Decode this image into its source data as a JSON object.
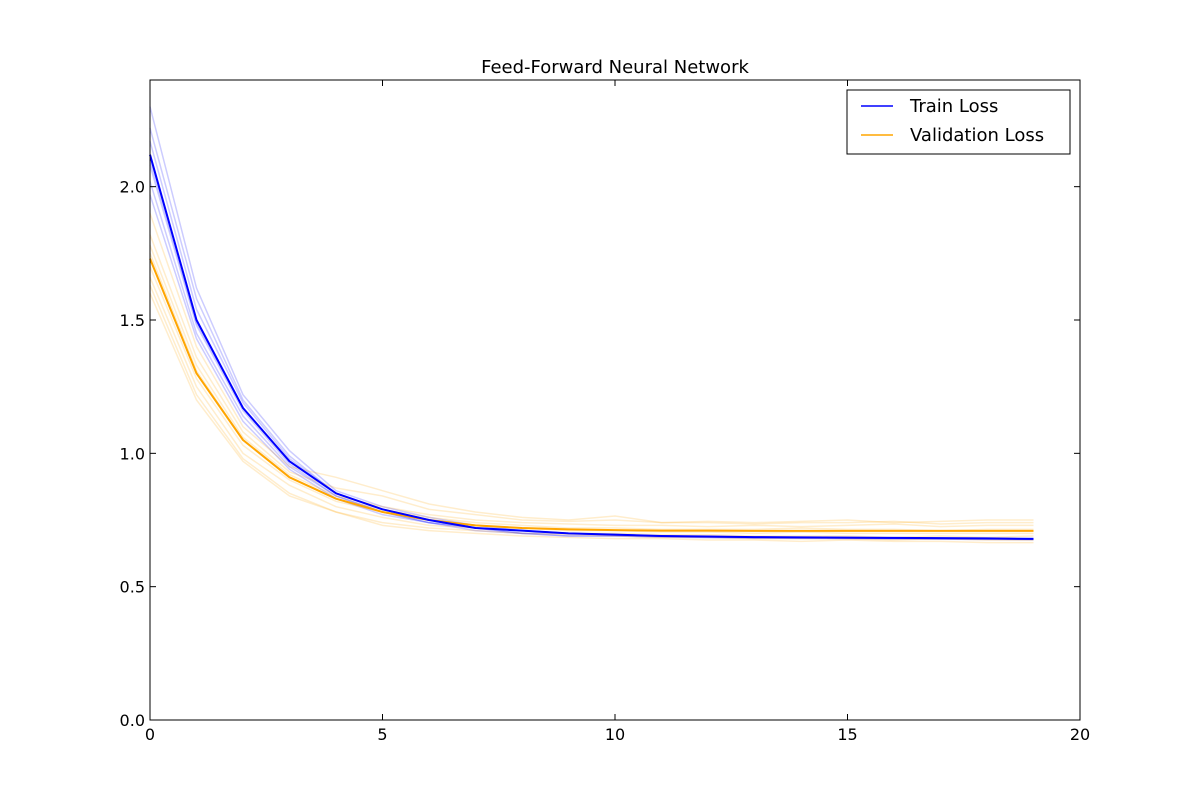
{
  "chart_data": {
    "type": "line",
    "title": "Feed-Forward Neural Network",
    "xlabel": "",
    "ylabel": "",
    "xlim": [
      0,
      20
    ],
    "ylim": [
      0,
      2.4
    ],
    "xticks": [
      "0",
      "5",
      "10",
      "15",
      "20"
    ],
    "yticks": [
      "0.0",
      "0.5",
      "1.0",
      "1.5",
      "2.0"
    ],
    "grid": false,
    "legend_position": "top-right",
    "x": [
      0,
      1,
      2,
      3,
      4,
      5,
      6,
      7,
      8,
      9,
      10,
      11,
      12,
      13,
      14,
      15,
      16,
      17,
      18,
      19
    ],
    "series": [
      {
        "name": "Train Loss",
        "color": "#0000ff",
        "values": [
          2.12,
          1.5,
          1.17,
          0.97,
          0.85,
          0.79,
          0.75,
          0.72,
          0.71,
          0.7,
          0.695,
          0.69,
          0.688,
          0.686,
          0.685,
          0.684,
          0.683,
          0.682,
          0.681,
          0.679
        ]
      },
      {
        "name": "Validation Loss",
        "color": "#ffa500",
        "values": [
          1.73,
          1.3,
          1.05,
          0.91,
          0.83,
          0.78,
          0.75,
          0.73,
          0.72,
          0.715,
          0.712,
          0.71,
          0.71,
          0.709,
          0.709,
          0.709,
          0.709,
          0.709,
          0.709,
          0.709
        ]
      }
    ],
    "faint_runs": {
      "opacity": 0.2,
      "train": [
        [
          2.3,
          1.62,
          1.22,
          1.01,
          0.86,
          0.8,
          0.76,
          0.73,
          0.71,
          0.7,
          0.695,
          0.69,
          0.688,
          0.686,
          0.685,
          0.684,
          0.683,
          0.682,
          0.681,
          0.68
        ],
        [
          2.22,
          1.58,
          1.2,
          0.99,
          0.85,
          0.79,
          0.75,
          0.72,
          0.71,
          0.7,
          0.695,
          0.69,
          0.688,
          0.686,
          0.685,
          0.684,
          0.683,
          0.682,
          0.681,
          0.68
        ],
        [
          2.17,
          1.54,
          1.19,
          0.98,
          0.85,
          0.79,
          0.75,
          0.72,
          0.71,
          0.7,
          0.694,
          0.69,
          0.687,
          0.685,
          0.684,
          0.683,
          0.682,
          0.681,
          0.68,
          0.679
        ],
        [
          2.08,
          1.48,
          1.16,
          0.96,
          0.84,
          0.78,
          0.74,
          0.72,
          0.7,
          0.7,
          0.693,
          0.689,
          0.686,
          0.684,
          0.683,
          0.682,
          0.681,
          0.68,
          0.679,
          0.678
        ],
        [
          2.02,
          1.45,
          1.14,
          0.95,
          0.84,
          0.78,
          0.74,
          0.72,
          0.7,
          0.69,
          0.69,
          0.687,
          0.685,
          0.683,
          0.682,
          0.681,
          0.68,
          0.679,
          0.678,
          0.677
        ],
        [
          1.97,
          1.43,
          1.12,
          0.94,
          0.83,
          0.77,
          0.74,
          0.71,
          0.7,
          0.69,
          0.69,
          0.686,
          0.684,
          0.682,
          0.681,
          0.68,
          0.679,
          0.678,
          0.677,
          0.676
        ],
        [
          2.1,
          1.49,
          1.17,
          0.97,
          0.85,
          0.79,
          0.75,
          0.72,
          0.71,
          0.7,
          0.695,
          0.69,
          0.687,
          0.685,
          0.684,
          0.683,
          0.682,
          0.681,
          0.68,
          0.678
        ]
      ],
      "validation": [
        [
          1.9,
          1.4,
          1.1,
          0.95,
          0.91,
          0.86,
          0.81,
          0.78,
          0.76,
          0.75,
          0.765,
          0.74,
          0.745,
          0.74,
          0.745,
          0.75,
          0.74,
          0.745,
          0.75,
          0.75
        ],
        [
          1.82,
          1.36,
          1.08,
          0.93,
          0.87,
          0.84,
          0.79,
          0.77,
          0.75,
          0.745,
          0.75,
          0.74,
          0.74,
          0.735,
          0.74,
          0.74,
          0.745,
          0.735,
          0.74,
          0.74
        ],
        [
          1.78,
          1.33,
          1.06,
          0.92,
          0.84,
          0.8,
          0.77,
          0.75,
          0.74,
          0.735,
          0.73,
          0.73,
          0.725,
          0.73,
          0.725,
          0.73,
          0.735,
          0.725,
          0.73,
          0.73
        ],
        [
          1.75,
          1.31,
          1.05,
          0.91,
          0.83,
          0.79,
          0.76,
          0.74,
          0.73,
          0.72,
          0.72,
          0.715,
          0.715,
          0.715,
          0.72,
          0.715,
          0.715,
          0.71,
          0.715,
          0.715
        ],
        [
          1.7,
          1.28,
          1.03,
          0.9,
          0.82,
          0.78,
          0.75,
          0.73,
          0.72,
          0.71,
          0.71,
          0.705,
          0.705,
          0.7,
          0.705,
          0.7,
          0.7,
          0.7,
          0.7,
          0.7
        ],
        [
          1.66,
          1.25,
          1.0,
          0.88,
          0.8,
          0.76,
          0.73,
          0.72,
          0.71,
          0.7,
          0.7,
          0.695,
          0.695,
          0.69,
          0.69,
          0.69,
          0.685,
          0.69,
          0.685,
          0.69
        ],
        [
          1.63,
          1.22,
          0.98,
          0.85,
          0.78,
          0.74,
          0.72,
          0.71,
          0.7,
          0.695,
          0.69,
          0.685,
          0.685,
          0.68,
          0.68,
          0.68,
          0.675,
          0.68,
          0.675,
          0.675
        ],
        [
          1.6,
          1.2,
          0.97,
          0.84,
          0.78,
          0.73,
          0.71,
          0.7,
          0.69,
          0.685,
          0.68,
          0.68,
          0.675,
          0.675,
          0.67,
          0.675,
          0.67,
          0.67,
          0.665,
          0.665
        ]
      ]
    }
  }
}
